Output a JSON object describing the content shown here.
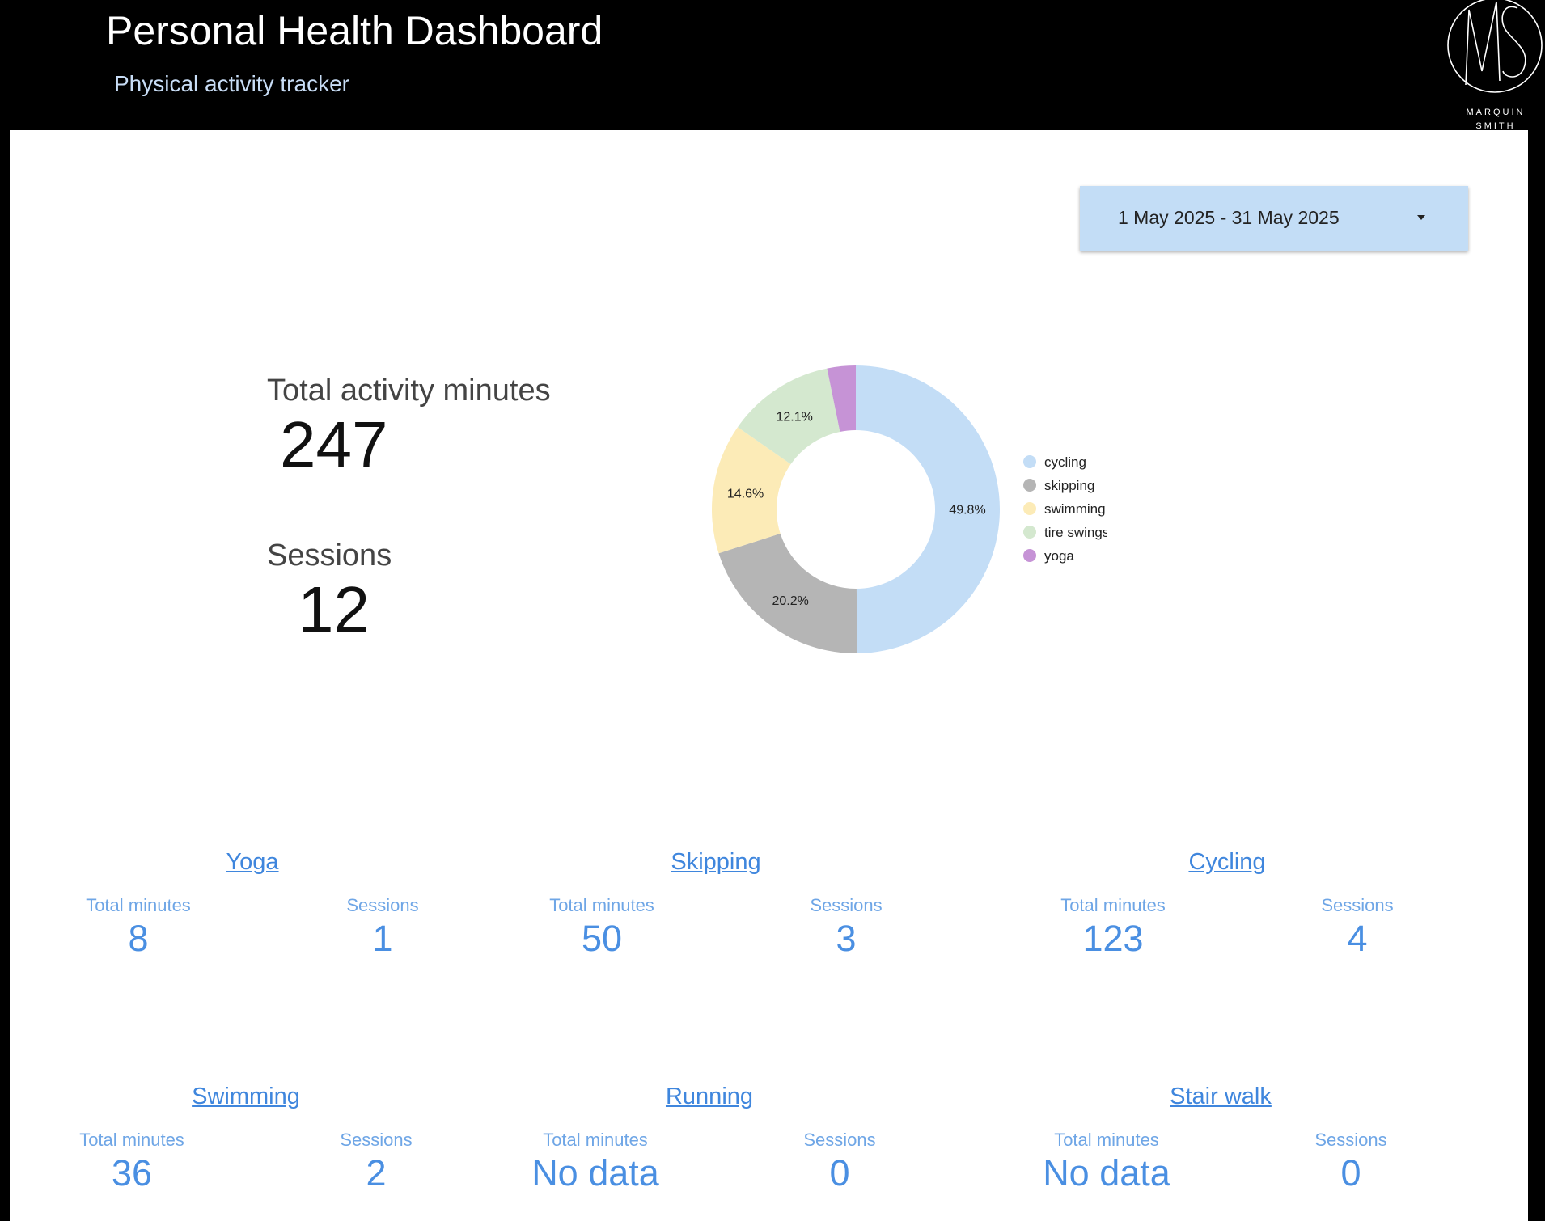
{
  "header": {
    "title": "Personal Health Dashboard",
    "subtitle": "Physical activity tracker",
    "brand": "MARQUIN SMITH"
  },
  "date_range": {
    "value": "1 May 2025 - 31 May 2025"
  },
  "kpis": {
    "total_minutes_label": "Total activity minutes",
    "total_minutes_value": "247",
    "sessions_label": "Sessions",
    "sessions_value": "12"
  },
  "chart_data": {
    "type": "pie",
    "style": "donut",
    "legend_position": "right",
    "labels": [
      "cycling",
      "skipping",
      "swimming",
      "tire swings",
      "yoga"
    ],
    "values": [
      49.8,
      20.2,
      14.6,
      12.1,
      3.2
    ],
    "data_labels": [
      "49.8%",
      "20.2%",
      "14.6%",
      "12.1%",
      ""
    ],
    "colors": [
      "#c3ddf6",
      "#b5b5b5",
      "#fcebb7",
      "#d4e8cf",
      "#c693d6"
    ]
  },
  "activities": [
    {
      "name": "Yoga",
      "minutes_label": "Total minutes",
      "minutes": "8",
      "sessions_label": "Sessions",
      "sessions": "1"
    },
    {
      "name": "Skipping",
      "minutes_label": "Total minutes",
      "minutes": "50",
      "sessions_label": "Sessions",
      "sessions": "3"
    },
    {
      "name": "Cycling",
      "minutes_label": "Total minutes",
      "minutes": "123",
      "sessions_label": "Sessions",
      "sessions": "4"
    },
    {
      "name": "Swimming",
      "minutes_label": "Total minutes",
      "minutes": "36",
      "sessions_label": "Sessions",
      "sessions": "2"
    },
    {
      "name": "Running",
      "minutes_label": "Total minutes",
      "minutes": "No data",
      "sessions_label": "Sessions",
      "sessions": "0"
    },
    {
      "name": "Stair walk",
      "minutes_label": "Total minutes",
      "minutes": "No data",
      "sessions_label": "Sessions",
      "sessions": "0"
    }
  ]
}
